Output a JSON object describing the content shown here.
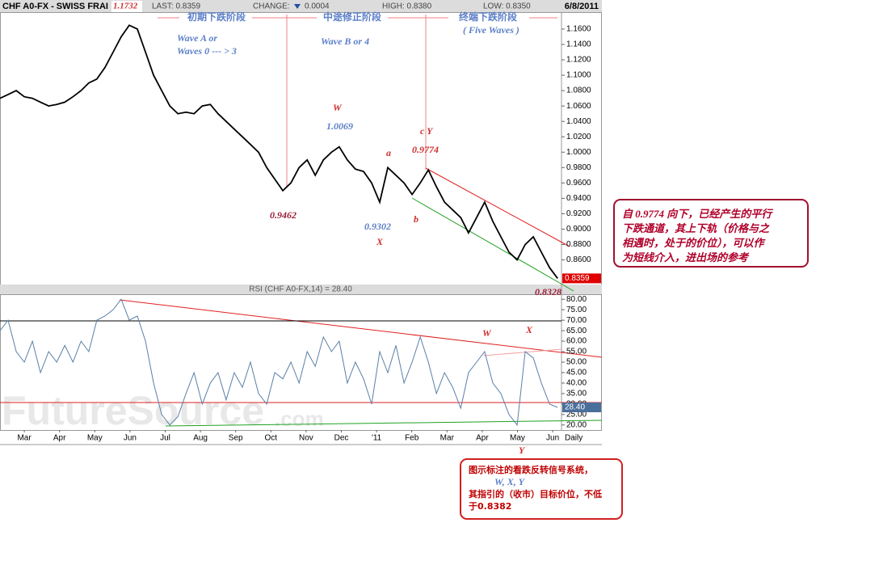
{
  "header": {
    "symbol": "CHF A0-FX - SWISS FRAI",
    "last": "LAST: 0.8359",
    "change_label": "CHANGE:",
    "change": "0.0004",
    "high": "HIGH: 0.8380",
    "low": "LOW: 0.8350",
    "date": "6/8/2011"
  },
  "chart_data": [
    {
      "type": "line",
      "color": "#000000",
      "high_label": "1.1732",
      "last_tag": "0.8359",
      "x": [
        -0.69,
        -0.46,
        -0.23,
        0,
        0.23,
        0.46,
        0.69,
        0.92,
        1.15,
        1.38,
        1.61,
        1.83,
        2.06,
        2.29,
        2.52,
        2.75,
        2.98,
        3.21,
        3.44,
        3.67,
        3.9,
        4.13,
        4.36,
        4.59,
        4.82,
        5.05,
        5.28,
        5.5,
        5.73,
        5.96,
        6.19,
        6.42,
        6.65,
        6.88,
        7.11,
        7.34,
        7.57,
        7.8,
        8.03,
        8.26,
        8.49,
        8.72,
        8.94,
        9.17,
        9.4,
        9.63,
        9.86,
        10.09,
        10.32,
        10.55,
        10.78,
        11.01,
        11.24,
        11.47,
        11.7,
        11.93,
        12.16,
        12.39,
        12.61,
        12.84,
        13.07,
        13.3,
        13.53,
        13.76,
        13.99,
        14.22,
        14.45,
        14.68,
        14.91,
        15.14
      ],
      "values": [
        1.07,
        1.075,
        1.08,
        1.072,
        1.07,
        1.065,
        1.06,
        1.062,
        1.065,
        1.072,
        1.08,
        1.09,
        1.095,
        1.11,
        1.13,
        1.15,
        1.165,
        1.16,
        1.13,
        1.1,
        1.08,
        1.06,
        1.05,
        1.052,
        1.05,
        1.06,
        1.062,
        1.05,
        1.04,
        1.03,
        1.02,
        1.01,
        1.0,
        0.98,
        0.965,
        0.95,
        0.96,
        0.98,
        0.99,
        0.97,
        0.99,
        1.0,
        1.007,
        0.99,
        0.978,
        0.975,
        0.96,
        0.935,
        0.98,
        0.97,
        0.96,
        0.945,
        0.96,
        0.977,
        0.955,
        0.935,
        0.925,
        0.915,
        0.895,
        0.915,
        0.935,
        0.91,
        0.89,
        0.87,
        0.86,
        0.88,
        0.89,
        0.87,
        0.85,
        0.836
      ],
      "xlim": [
        -0.69,
        15.25
      ],
      "ylim": [
        0.828,
        1.182
      ],
      "yticks": [
        {
          "value": 0.86,
          "label": "0.8600"
        },
        {
          "value": 0.88,
          "label": "0.8800"
        },
        {
          "value": 0.9,
          "label": "0.9000"
        },
        {
          "value": 0.92,
          "label": "0.9200"
        },
        {
          "value": 0.94,
          "label": "0.9400"
        },
        {
          "value": 0.96,
          "label": "0.9600"
        },
        {
          "value": 0.98,
          "label": "0.9800"
        },
        {
          "value": 1.0,
          "label": "1.0000"
        },
        {
          "value": 1.02,
          "label": "1.0200"
        },
        {
          "value": 1.04,
          "label": "1.0400"
        },
        {
          "value": 1.06,
          "label": "1.0600"
        },
        {
          "value": 1.08,
          "label": "1.0800"
        },
        {
          "value": 1.1,
          "label": "1.1000"
        },
        {
          "value": 1.12,
          "label": "1.1200"
        },
        {
          "value": 1.14,
          "label": "1.1400"
        },
        {
          "value": 1.16,
          "label": "1.1600"
        }
      ]
    },
    {
      "type": "line",
      "color": "#5a7fa8",
      "title": "RSI (CHF A0-FX,14) = 28.40",
      "last_tag": "28.40",
      "xlabel": "Daily",
      "x": [
        -0.69,
        -0.46,
        -0.23,
        0,
        0.23,
        0.46,
        0.69,
        0.92,
        1.15,
        1.38,
        1.61,
        1.83,
        2.06,
        2.29,
        2.52,
        2.75,
        2.98,
        3.21,
        3.44,
        3.67,
        3.9,
        4.13,
        4.36,
        4.59,
        4.82,
        5.05,
        5.28,
        5.5,
        5.73,
        5.96,
        6.19,
        6.42,
        6.65,
        6.88,
        7.11,
        7.34,
        7.57,
        7.8,
        8.03,
        8.26,
        8.49,
        8.72,
        8.94,
        9.17,
        9.4,
        9.63,
        9.86,
        10.09,
        10.32,
        10.55,
        10.78,
        11.01,
        11.24,
        11.47,
        11.7,
        11.93,
        12.16,
        12.39,
        12.61,
        12.84,
        13.07,
        13.3,
        13.53,
        13.76,
        13.99,
        14.22,
        14.45,
        14.68,
        14.91,
        15.14
      ],
      "values": [
        65,
        70,
        55,
        50,
        60,
        45,
        55,
        50,
        58,
        50,
        60,
        55,
        70,
        72,
        75,
        80,
        70,
        72,
        60,
        40,
        25,
        20,
        24,
        35,
        45,
        30,
        40,
        45,
        32,
        45,
        38,
        50,
        35,
        30,
        45,
        42,
        50,
        40,
        55,
        48,
        62,
        55,
        60,
        40,
        50,
        42,
        30,
        55,
        45,
        58,
        40,
        50,
        62,
        50,
        35,
        45,
        38,
        28,
        45,
        50,
        55,
        40,
        35,
        25,
        20,
        55,
        52,
        40,
        30,
        28.4
      ],
      "xlim": [
        -0.69,
        15.25
      ],
      "ylim": [
        17.6,
        82.4
      ],
      "xticks": [
        {
          "value": 0,
          "label": "Mar"
        },
        {
          "value": 1,
          "label": "Apr"
        },
        {
          "value": 2,
          "label": "May"
        },
        {
          "value": 3,
          "label": "Jun"
        },
        {
          "value": 4,
          "label": "Jul"
        },
        {
          "value": 5,
          "label": "Aug"
        },
        {
          "value": 6,
          "label": "Sep"
        },
        {
          "value": 7,
          "label": "Oct"
        },
        {
          "value": 8,
          "label": "Nov"
        },
        {
          "value": 9,
          "label": "Dec"
        },
        {
          "value": 10,
          "label": "'11"
        },
        {
          "value": 11,
          "label": "Feb"
        },
        {
          "value": 12,
          "label": "Mar"
        },
        {
          "value": 13,
          "label": "Apr"
        },
        {
          "value": 14,
          "label": "May"
        },
        {
          "value": 15,
          "label": "Jun"
        }
      ],
      "yticks": [
        {
          "value": 20,
          "label": "20.00"
        },
        {
          "value": 25,
          "label": "25.00"
        },
        {
          "value": 30,
          "label": "30.00"
        },
        {
          "value": 35,
          "label": "35.00"
        },
        {
          "value": 40,
          "label": "40.00"
        },
        {
          "value": 45,
          "label": "45.00"
        },
        {
          "value": 50,
          "label": "50.00"
        },
        {
          "value": 55,
          "label": "55.00"
        },
        {
          "value": 60,
          "label": "60.00"
        },
        {
          "value": 65,
          "label": "65.00"
        },
        {
          "value": 70,
          "label": "70.00"
        },
        {
          "value": 75,
          "label": "75.00"
        },
        {
          "value": 80,
          "label": "80.00"
        }
      ]
    }
  ],
  "annotations": {
    "phase_1": "初期下跌阶段",
    "phase_2": "中途修正阶段",
    "phase_3": "终端下跌阶段",
    "wave_a_1": "Wave A or",
    "wave_a_2": "Waves 0 --- > 3",
    "wave_b": "Wave B or 4",
    "five_waves": "( Five Waves )",
    "w": "W",
    "w_price": "1.0069",
    "cy": "c  Y",
    "cy_price": "0.9774",
    "a": "a",
    "b": "b",
    "low_1": "0.9462",
    "low_2": "0.9302",
    "x": "X",
    "low_3": "0.8328",
    "rsi_w": "W",
    "rsi_x": "X",
    "rsi_y": "Y"
  },
  "notes": [
    {
      "lines": [
        "自 0.9774 向下，已经产生的平行",
        "下跌通道，其上下轨（价格与之",
        "相遇时，处于的价位），可以作",
        "为短线介入，进出场的参考"
      ]
    },
    {
      "lines": [
        "图示标注的看跌反转信号系统，",
        "W, X, Y",
        "其指引的（收市）目标价位，不低",
        "于0.8382"
      ]
    }
  ],
  "watermark": {
    "main": "FutureSource",
    "suffix": ".com"
  }
}
